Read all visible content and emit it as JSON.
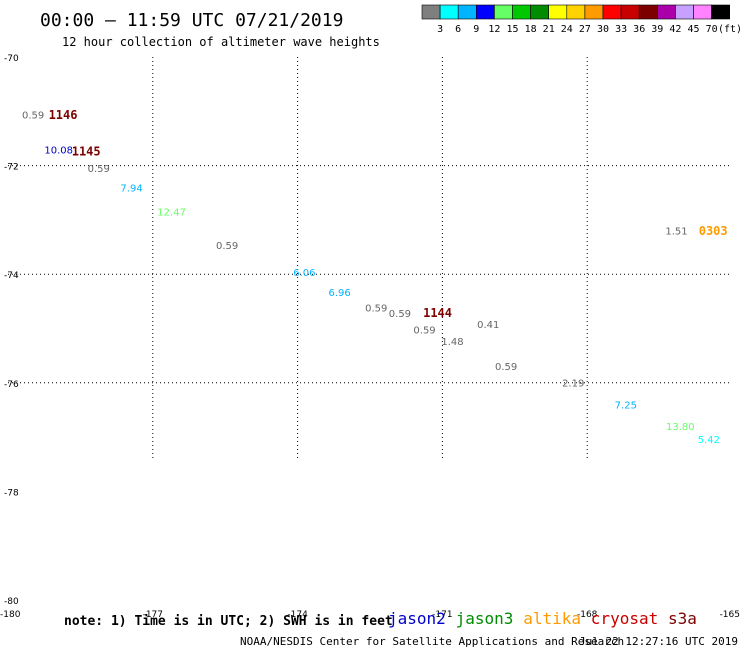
{
  "header": {
    "title": "00:00 — 11:59 UTC 07/21/2019",
    "subtitle": "12 hour collection of altimeter wave heights"
  },
  "colorbar": {
    "unit_label": "(ft)",
    "bins": [
      {
        "label": "3",
        "color": "#7f7f7f"
      },
      {
        "label": "6",
        "color": "#00ffff"
      },
      {
        "label": "9",
        "color": "#00b4ff"
      },
      {
        "label": "12",
        "color": "#0000ff"
      },
      {
        "label": "15",
        "color": "#66ff66"
      },
      {
        "label": "18",
        "color": "#00c800"
      },
      {
        "label": "21",
        "color": "#008c00"
      },
      {
        "label": "24",
        "color": "#ffff00"
      },
      {
        "label": "27",
        "color": "#ffd200"
      },
      {
        "label": "30",
        "color": "#ff9b00"
      },
      {
        "label": "33",
        "color": "#ff0000"
      },
      {
        "label": "36",
        "color": "#c80000"
      },
      {
        "label": "39",
        "color": "#7d0000"
      },
      {
        "label": "42",
        "color": "#aa00aa"
      },
      {
        "label": "45",
        "color": "#c8a0ff"
      },
      {
        "label": "70",
        "color": "#ff82ff"
      },
      {
        "label": "",
        "color": "#000000"
      }
    ]
  },
  "chart_data": {
    "type": "scatter",
    "xlim": [
      -180,
      -165
    ],
    "ylim": [
      -80,
      -70
    ],
    "x_ticks": [
      {
        "value": -180,
        "label": "-180"
      },
      {
        "value": -177,
        "label": "-177"
      },
      {
        "value": -174,
        "label": "-174"
      },
      {
        "value": -171,
        "label": "-171"
      },
      {
        "value": -168,
        "label": "-168"
      },
      {
        "value": -165,
        "label": "-165"
      }
    ],
    "y_ticks": [
      {
        "value": -70,
        "label": "-70"
      },
      {
        "value": -72,
        "label": "-72"
      },
      {
        "value": -74,
        "label": "-74"
      },
      {
        "value": -76,
        "label": "-76"
      },
      {
        "value": -78,
        "label": "-78"
      },
      {
        "value": -80,
        "label": "-80"
      }
    ],
    "grid": true,
    "grid_extent_lat": -77.4,
    "points": [
      {
        "lon": -179.48,
        "lat": -71.08,
        "label": "0.59",
        "color": "#666666"
      },
      {
        "lon": -178.95,
        "lat": -71.72,
        "label": "10.08",
        "color": "#0000c8"
      },
      {
        "lon": -178.12,
        "lat": -72.06,
        "label": "0.59",
        "color": "#666666"
      },
      {
        "lon": -177.44,
        "lat": -72.42,
        "label": "7.94",
        "color": "#00b4ff"
      },
      {
        "lon": -176.61,
        "lat": -72.86,
        "label": "12.47",
        "color": "#66ff66"
      },
      {
        "lon": -175.46,
        "lat": -73.48,
        "label": "0.59",
        "color": "#666666"
      },
      {
        "lon": -173.86,
        "lat": -73.98,
        "label": "6.06",
        "color": "#00b4ff"
      },
      {
        "lon": -173.13,
        "lat": -74.35,
        "label": "6.96",
        "color": "#00b4ff"
      },
      {
        "lon": -172.37,
        "lat": -74.63,
        "label": "0.59",
        "color": "#666666"
      },
      {
        "lon": -171.88,
        "lat": -74.73,
        "label": "0.59",
        "color": "#666666"
      },
      {
        "lon": -171.37,
        "lat": -75.04,
        "label": "0.59",
        "color": "#666666"
      },
      {
        "lon": -170.79,
        "lat": -75.25,
        "label": "1.48",
        "color": "#666666"
      },
      {
        "lon": -170.05,
        "lat": -74.94,
        "label": "0.41",
        "color": "#666666"
      },
      {
        "lon": -169.68,
        "lat": -75.71,
        "label": "0.59",
        "color": "#666666"
      },
      {
        "lon": -168.29,
        "lat": -76.01,
        "label": "2.19",
        "color": "#666666"
      },
      {
        "lon": -167.2,
        "lat": -76.42,
        "label": "7.25",
        "color": "#00b4ff"
      },
      {
        "lon": -166.07,
        "lat": -76.81,
        "label": "13.80",
        "color": "#66ff66"
      },
      {
        "lon": -165.48,
        "lat": -77.05,
        "label": "5.42",
        "color": "#00ffff"
      },
      {
        "lon": -166.15,
        "lat": -73.21,
        "label": "1.51",
        "color": "#666666"
      }
    ],
    "time_labels": [
      {
        "lon": -178.86,
        "lat": -71.08,
        "label": "1146",
        "color": "#7d0000"
      },
      {
        "lon": -178.38,
        "lat": -71.75,
        "label": "1145",
        "color": "#7d0000"
      },
      {
        "lon": -171.1,
        "lat": -74.72,
        "label": "1144",
        "color": "#7d0000"
      },
      {
        "lon": -165.39,
        "lat": -73.21,
        "label": "0303",
        "color": "#ff9b00"
      }
    ]
  },
  "footer": {
    "note": "note: 1) Time is in UTC; 2) SWH is in feet",
    "credit": "NOAA/NESDIS Center for Satellite Applications and Research",
    "timestamp": "Jul 22 12:27:16 UTC 2019",
    "satellites": [
      {
        "name": "jason2",
        "color": "#0000c8"
      },
      {
        "name": "jason3",
        "color": "#008c00"
      },
      {
        "name": "altika",
        "color": "#ff9b00"
      },
      {
        "name": "cryosat",
        "color": "#c80000"
      },
      {
        "name": "s3a",
        "color": "#7d0000"
      }
    ]
  }
}
